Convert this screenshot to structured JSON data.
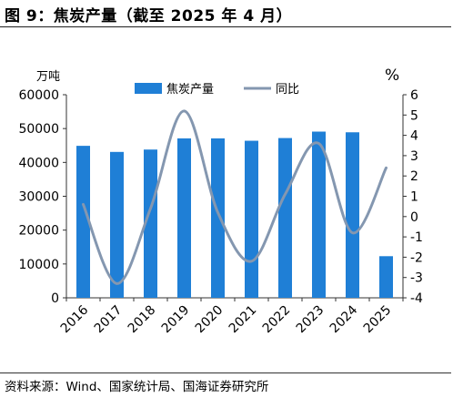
{
  "figure": {
    "title": "图 9：焦炭产量（截至 2025 年 4 月）",
    "source": "资料来源：Wind、国家统计局、国海证券研究所"
  },
  "chart_data": {
    "type": "bar",
    "categories": [
      "2016",
      "2017",
      "2018",
      "2019",
      "2020",
      "2021",
      "2022",
      "2023",
      "2024",
      "2025"
    ],
    "left_axis": {
      "unit": "万吨",
      "ylim": [
        0,
        60000
      ],
      "ticks": [
        0,
        10000,
        20000,
        30000,
        40000,
        50000,
        60000
      ]
    },
    "right_axis": {
      "unit": "%",
      "ylim": [
        -4,
        6
      ],
      "ticks": [
        -4,
        -3,
        -2,
        -1,
        0,
        1,
        2,
        3,
        4,
        5,
        6
      ]
    },
    "series": [
      {
        "name": "焦炭产量",
        "type": "bar",
        "axis": "left",
        "color": "#1f7fd6",
        "values": [
          44900,
          43100,
          43800,
          47100,
          47100,
          46400,
          47200,
          49100,
          48900,
          12300
        ]
      },
      {
        "name": "同比",
        "type": "line",
        "axis": "right",
        "color": "#8497b0",
        "values": [
          0.6,
          -3.3,
          0.4,
          5.2,
          0.2,
          -2.2,
          1.1,
          3.6,
          -0.8,
          2.4
        ]
      }
    ],
    "legend_position": "top-center",
    "grid": false
  }
}
